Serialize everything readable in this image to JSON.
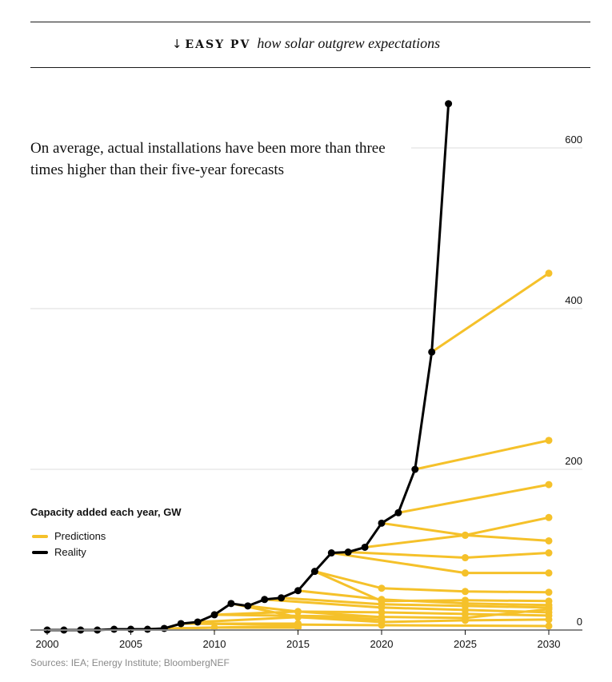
{
  "header": {
    "arrow_icon": "arrow-down",
    "kicker": "EASY PV",
    "subtitle": "how solar outgrew expectations"
  },
  "headline": "On average, actual installations have been more than three times higher than their five-year forecasts",
  "legend": {
    "title": "Capacity added each year, GW",
    "items": [
      {
        "label": "Predictions",
        "color": "#F5C12A"
      },
      {
        "label": "Reality",
        "color": "#000000"
      }
    ]
  },
  "source": "Sources: IEA; Energy Institute; BloombergNEF",
  "chart_data": {
    "type": "line",
    "title": "Capacity added each year, GW",
    "xlabel": "",
    "ylabel": "GW",
    "xlim": [
      2000,
      2030
    ],
    "ylim": [
      0,
      660
    ],
    "x_ticks": [
      2000,
      2005,
      2010,
      2015,
      2020,
      2025,
      2030
    ],
    "y_ticks": [
      0,
      200,
      400,
      600
    ],
    "grid": "horizontal",
    "y_axis_position": "right",
    "colors": {
      "reality": "#000000",
      "predictions": "#F5C12A",
      "grid": "#dddddd",
      "axis": "#888888"
    },
    "reality": {
      "name": "Reality",
      "points": [
        [
          2000,
          0
        ],
        [
          2001,
          0
        ],
        [
          2002,
          0
        ],
        [
          2003,
          0
        ],
        [
          2004,
          1
        ],
        [
          2005,
          1
        ],
        [
          2006,
          1
        ],
        [
          2007,
          2
        ],
        [
          2008,
          8
        ],
        [
          2009,
          10
        ],
        [
          2010,
          19
        ],
        [
          2011,
          33
        ],
        [
          2012,
          30
        ],
        [
          2013,
          38
        ],
        [
          2014,
          40
        ],
        [
          2015,
          49
        ],
        [
          2016,
          73
        ],
        [
          2017,
          96
        ],
        [
          2018,
          97
        ],
        [
          2019,
          103
        ],
        [
          2020,
          133
        ],
        [
          2021,
          146
        ],
        [
          2022,
          200
        ],
        [
          2023,
          346
        ],
        [
          2024,
          655
        ]
      ]
    },
    "predictions": [
      {
        "from": 2006,
        "points": [
          [
            2006,
            1
          ],
          [
            2010,
            3
          ],
          [
            2015,
            3
          ]
        ]
      },
      {
        "from": 2007,
        "points": [
          [
            2007,
            2
          ],
          [
            2015,
            5
          ]
        ]
      },
      {
        "from": 2008,
        "points": [
          [
            2008,
            8
          ],
          [
            2015,
            8
          ]
        ]
      },
      {
        "from": 2009,
        "points": [
          [
            2009,
            10
          ],
          [
            2015,
            16
          ],
          [
            2020,
            13
          ]
        ]
      },
      {
        "from": 2010,
        "points": [
          [
            2010,
            19
          ],
          [
            2015,
            23
          ],
          [
            2020,
            16
          ]
        ]
      },
      {
        "from": 2011,
        "points": [
          [
            2011,
            33
          ],
          [
            2015,
            16
          ],
          [
            2020,
            10
          ],
          [
            2025,
            12
          ],
          [
            2030,
            13
          ]
        ]
      },
      {
        "from": 2012,
        "points": [
          [
            2012,
            30
          ],
          [
            2015,
            23
          ],
          [
            2020,
            22
          ],
          [
            2025,
            20
          ],
          [
            2030,
            18
          ]
        ]
      },
      {
        "from": 2013,
        "points": [
          [
            2013,
            38
          ],
          [
            2020,
            28
          ],
          [
            2025,
            25
          ],
          [
            2030,
            22
          ]
        ]
      },
      {
        "from": 2014,
        "points": [
          [
            2014,
            40
          ],
          [
            2020,
            32
          ],
          [
            2025,
            30
          ],
          [
            2030,
            28
          ]
        ]
      },
      {
        "from": 2015,
        "points": [
          [
            2015,
            49
          ],
          [
            2020,
            38
          ],
          [
            2025,
            33
          ],
          [
            2030,
            31
          ]
        ]
      },
      {
        "from": 2016,
        "points": [
          [
            2016,
            73
          ],
          [
            2020,
            52
          ],
          [
            2025,
            48
          ],
          [
            2030,
            47
          ]
        ]
      },
      {
        "from": 2017,
        "points": [
          [
            2017,
            96
          ],
          [
            2025,
            71
          ],
          [
            2030,
            71
          ]
        ]
      },
      {
        "from": 2018,
        "points": [
          [
            2018,
            97
          ],
          [
            2025,
            90
          ],
          [
            2030,
            96
          ]
        ]
      },
      {
        "from": 2019,
        "points": [
          [
            2019,
            103
          ],
          [
            2025,
            118
          ],
          [
            2030,
            140
          ]
        ]
      },
      {
        "from": 2020,
        "points": [
          [
            2020,
            133
          ],
          [
            2025,
            118
          ],
          [
            2030,
            111
          ]
        ]
      },
      {
        "from": 2021,
        "points": [
          [
            2021,
            146
          ],
          [
            2030,
            181
          ]
        ]
      },
      {
        "from": 2022,
        "points": [
          [
            2022,
            200
          ],
          [
            2030,
            236
          ]
        ]
      },
      {
        "from": 2023,
        "points": [
          [
            2023,
            346
          ],
          [
            2030,
            444
          ]
        ]
      },
      {
        "from": 2016,
        "points": [
          [
            2016,
            73
          ],
          [
            2020,
            36
          ],
          [
            2025,
            37
          ],
          [
            2030,
            36
          ]
        ]
      },
      {
        "from": 2010,
        "points": [
          [
            2010,
            19
          ],
          [
            2025,
            15
          ],
          [
            2030,
            26
          ]
        ]
      },
      {
        "from": 2008,
        "points": [
          [
            2008,
            8
          ],
          [
            2020,
            6
          ],
          [
            2030,
            5
          ]
        ]
      }
    ]
  }
}
